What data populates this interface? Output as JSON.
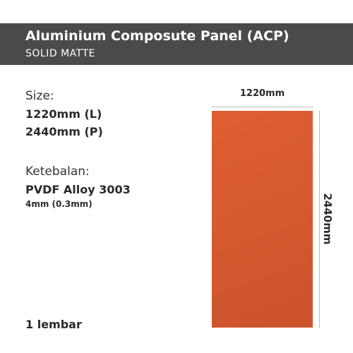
{
  "header": {
    "title": "Aluminium Composute Panel (ACP)",
    "subtitle": "SOLID MATTE"
  },
  "specs": {
    "size_label": "Size:",
    "size_length": "1220mm (L)",
    "size_width": "2440mm (P)",
    "thickness_label": "Ketebalan:",
    "material": "PVDF Alloy 3003",
    "thickness_value": "4mm (0.3mm)",
    "quantity": "1 lembar"
  },
  "diagram": {
    "panel_color": "#d5582f",
    "width_label": "1220mm",
    "height_label": "2440mm"
  }
}
